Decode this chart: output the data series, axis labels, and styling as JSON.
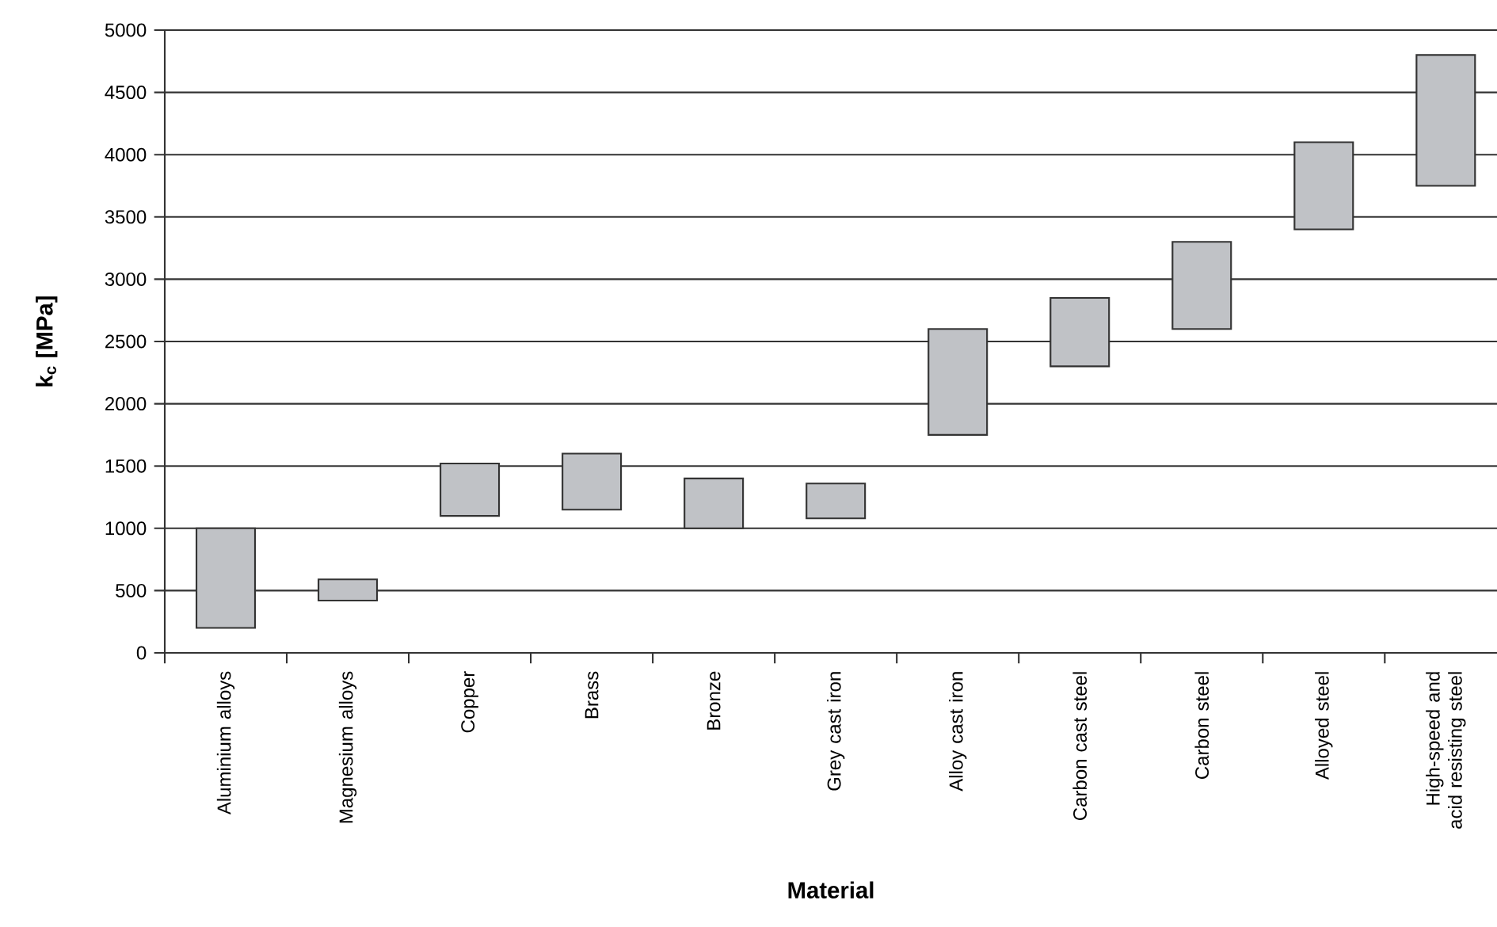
{
  "chart_data": {
    "type": "bar",
    "xlabel": "Material",
    "ylabel": "k$_{c}$ [MPa]",
    "categories": [
      "Aluminium alloys",
      "Magnesium alloys",
      "Copper",
      "Brass",
      "Bronze",
      "Grey cast iron",
      "Alloy cast iron",
      "Carbon cast steel",
      "Carbon steel",
      "Alloyed steel",
      "High-speed and acid resisting steel"
    ],
    "base": [
      200,
      420,
      1100,
      1150,
      1000,
      1080,
      1750,
      2300,
      2600,
      3400,
      3750
    ],
    "values": [
      800,
      170,
      420,
      450,
      400,
      280,
      850,
      550,
      700,
      700,
      1050
    ],
    "color": "#c0c2c6",
    "ylim": [
      0,
      5000
    ],
    "yticks": [
      0,
      500,
      1000,
      1500,
      2000,
      2500,
      3000,
      3500,
      4000,
      4500,
      5000
    ],
    "grid": "y"
  }
}
